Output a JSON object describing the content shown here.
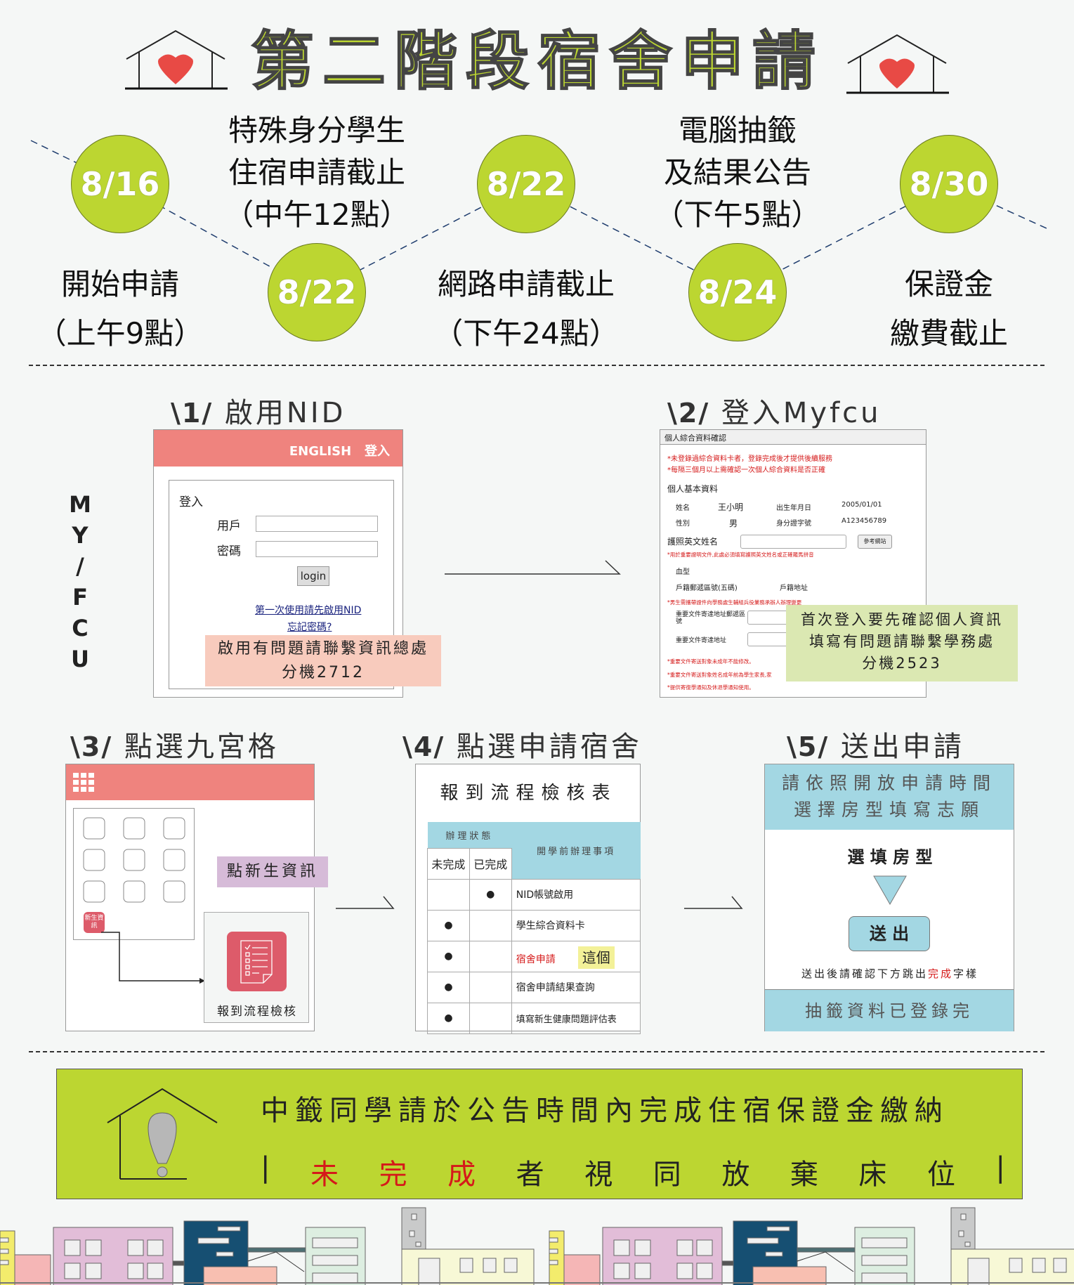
{
  "title": "第二階段宿舍申請",
  "timeline": [
    {
      "date": "8/16",
      "label": [
        "開始申請",
        "（上午9點）"
      ]
    },
    {
      "date": "8/22",
      "label": [
        "特殊身分學生",
        "住宿申請截止",
        "（中午12點）"
      ]
    },
    {
      "date": "8/22",
      "label": [
        "網路申請截止",
        "（下午24點）"
      ]
    },
    {
      "date": "8/24",
      "label": [
        "電腦抽籤",
        "及結果公告",
        "（下午5點）"
      ]
    },
    {
      "date": "8/30",
      "label": [
        "保證金",
        "繳費截止"
      ]
    }
  ],
  "side_label": [
    "M",
    "Y",
    "/",
    "F",
    "C",
    "U"
  ],
  "steps": {
    "s1": {
      "num": "\\1/",
      "title": "啟用NID",
      "header_english": "ENGLISH",
      "header_login": "登入",
      "box_title": "登入",
      "user_label": "用戶",
      "pass_label": "密碼",
      "login_button": "login",
      "link_first": "第一次使用請先啟用NID",
      "link_forgot": "忘記密碼?",
      "note_line1": "啟用有問題請聯繫資訊總處",
      "note_line2": "分機2712"
    },
    "s2": {
      "num": "\\2/",
      "title": "登入Myfcu",
      "header": "個人綜合資料確認",
      "warn1": "*未登錄過綜合資料卡者，登錄完成後才提供後續服務",
      "warn2": "*每隔三個月以上需確認一次個人綜合資料是否正確",
      "section": "個人基本資料",
      "name_label": "姓名",
      "name_value": "王小明",
      "birth_label": "出生年月日",
      "birth_value": "2005/01/01",
      "sex_label": "性別",
      "sex_value": "男",
      "id_label": "身分證字號",
      "id_value": "A123456789",
      "passport_label": "護照英文姓名",
      "ref_button": "參考網站",
      "passport_note": "*用於重要證明文件,此處必須填寫護照英文姓名或正確羅馬拼音",
      "blood_label": "血型",
      "zip_label": "戶籍郵遞區號(五碼)",
      "addr_label": "戶籍地址",
      "male_note": "*男生需攜帶證件向學務處生輔組兵役業務承辦人辦理變更",
      "mail_zip_label": "重要文件寄達地址郵遞區號",
      "mail_addr_label": "重要文件寄達地址",
      "note_a": "*重要文件寄送對象未成年不能修改。",
      "note_b": "*重要文件寄送對象姓名成年前為學生家長,家",
      "note_c": "*提供寄復學通知及休退學通知使用。",
      "callout1": "首次登入要先確認個人資訊",
      "callout2": "填寫有問題請聯繫學務處",
      "callout3": "分機2523"
    },
    "s3": {
      "num": "\\3/",
      "title": "點選九宮格",
      "app_icon": "新生資訊",
      "callout": "點新生資訊",
      "target_label": "報到流程檢核"
    },
    "s4": {
      "num": "\\4/",
      "title": "點選申請宿舍",
      "table_title": "報到流程檢核表",
      "status_header": "辦理狀態",
      "col_todo": "未完成",
      "col_done": "已完成",
      "col_item": "開學前辦理事項",
      "rows": [
        {
          "done": true,
          "item": "NID帳號啟用"
        },
        {
          "done": false,
          "item": "學生綜合資料卡"
        },
        {
          "done": false,
          "item": "宿舍申請",
          "highlight": "這個"
        },
        {
          "done": false,
          "item": "宿舍申請結果查詢"
        },
        {
          "done": false,
          "item": "填寫新生健康問題評估表"
        }
      ],
      "bullet": "●"
    },
    "s5": {
      "num": "\\5/",
      "title": "送出申請",
      "top1": "請依照開放申請時間",
      "top2": "選擇房型填寫志願",
      "choose": "選 填 房 型",
      "submit": "送 出",
      "confirm_pre": "送出後請確認下方跳出",
      "confirm_red": "完成",
      "confirm_post": "字樣",
      "bottom": "抽籤資料已登錄完"
    }
  },
  "banner": {
    "line1": "中籤同學請於公告時間內完成住宿保證金繳納",
    "bar": "|",
    "line2_red": [
      "未",
      "完",
      "成"
    ],
    "line2": [
      "者",
      "視",
      "同",
      "放",
      "棄",
      "床",
      "位"
    ]
  },
  "colors": {
    "accent_green": "#bcd631",
    "salmon": "#ef837e",
    "blue": "#a3d7e3",
    "red": "#d51a1a"
  }
}
